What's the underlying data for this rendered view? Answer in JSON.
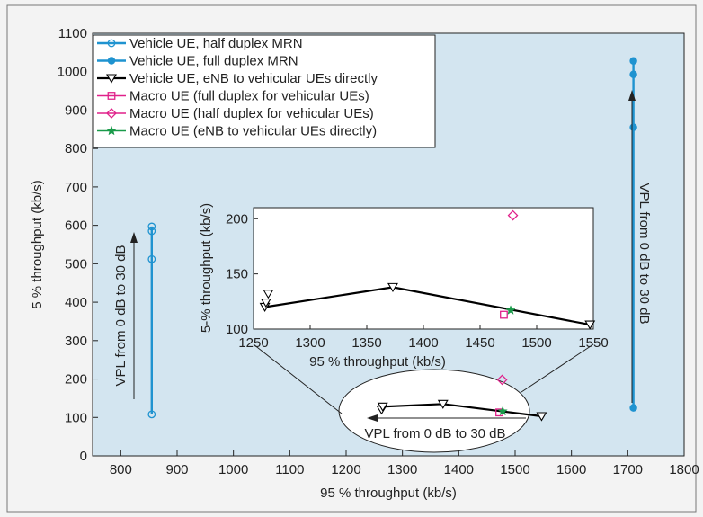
{
  "chart_data": [
    {
      "type": "scatter",
      "title": "",
      "xlabel": "95 % throughput (kb/s)",
      "ylabel": "5 % throughput (kb/s)",
      "xlim": [
        750,
        1800
      ],
      "ylim": [
        0,
        1100
      ],
      "xticks": [
        "800",
        "900",
        "1000",
        "1100",
        "1200",
        "1300",
        "1400",
        "1500",
        "1600",
        "1700",
        "1800"
      ],
      "yticks": [
        "0",
        "100",
        "200",
        "300",
        "400",
        "500",
        "600",
        "700",
        "800",
        "900",
        "1000",
        "1100"
      ],
      "grid": false,
      "legend_position": "top-left",
      "background_color": "#d3e5f0",
      "series": [
        {
          "name": "Vehicle UE, half duplex MRN",
          "marker": "open-circle",
          "color": "#1f93d0",
          "line": true,
          "points": [
            [
              855,
              108
            ],
            [
              855,
              512
            ],
            [
              855,
              585
            ],
            [
              855,
              597
            ]
          ]
        },
        {
          "name": "Vehicle UE, full duplex MRN",
          "marker": "filled-circle",
          "color": "#1f93d0",
          "line": true,
          "points": [
            [
              1710,
              125
            ],
            [
              1710,
              855
            ],
            [
              1710,
              993
            ],
            [
              1710,
              1028
            ]
          ]
        },
        {
          "name": "Vehicle UE, eNB to vehicular UEs directly",
          "marker": "open-triangle-down",
          "color": "#000000",
          "line": true,
          "points": [
            [
              1263,
              120
            ],
            [
              1265,
              128
            ],
            [
              1372,
              135
            ],
            [
              1547,
              103
            ]
          ]
        },
        {
          "name": "Macro UE (full duplex for vehicular UEs)",
          "marker": "open-square",
          "color": "#e0218a",
          "line": false,
          "points": [
            [
              1472,
              113
            ]
          ]
        },
        {
          "name": "Macro UE (half duplex for vehicular UEs)",
          "marker": "open-diamond",
          "color": "#e0218a",
          "line": false,
          "points": [
            [
              1477,
              198
            ]
          ]
        },
        {
          "name": "Macro UE (eNB to vehicular UEs directly)",
          "marker": "star",
          "color": "#1a9a4a",
          "line": false,
          "points": [
            [
              1478,
              116
            ]
          ]
        }
      ],
      "annotations": [
        "VPL from 0 dB to 30 dB",
        "VPL from 0 dB to 30 dB",
        "VPL from 0 dB to 30 dB"
      ]
    },
    {
      "type": "scatter",
      "title": "",
      "xlabel": "95 % throughput (kb/s)",
      "ylabel": "5-% throughput (kb/s)",
      "xlim": [
        1250,
        1550
      ],
      "ylim": [
        100,
        210
      ],
      "xticks": [
        "1250",
        "1300",
        "1350",
        "1400",
        "1450",
        "1500",
        "1550"
      ],
      "yticks": [
        "100",
        "150",
        "200"
      ],
      "grid": false,
      "series": [
        {
          "name": "Vehicle UE, eNB to vehicular UEs directly",
          "marker": "open-triangle-down",
          "color": "#000000",
          "line": true,
          "points": [
            [
              1260,
              120
            ],
            [
              1261,
              124
            ],
            [
              1263,
              132
            ],
            [
              1373,
              138
            ],
            [
              1547,
              104
            ]
          ]
        },
        {
          "name": "Macro UE (full duplex for vehicular UEs)",
          "marker": "open-square",
          "color": "#e0218a",
          "line": false,
          "points": [
            [
              1471,
              113
            ]
          ]
        },
        {
          "name": "Macro UE (half duplex for vehicular UEs)",
          "marker": "open-diamond",
          "color": "#e0218a",
          "line": false,
          "points": [
            [
              1479,
              203
            ]
          ]
        },
        {
          "name": "Macro UE (eNB to vehicular UEs directly)",
          "marker": "star",
          "color": "#1a9a4a",
          "line": false,
          "points": [
            [
              1477,
              117
            ]
          ]
        }
      ]
    }
  ]
}
